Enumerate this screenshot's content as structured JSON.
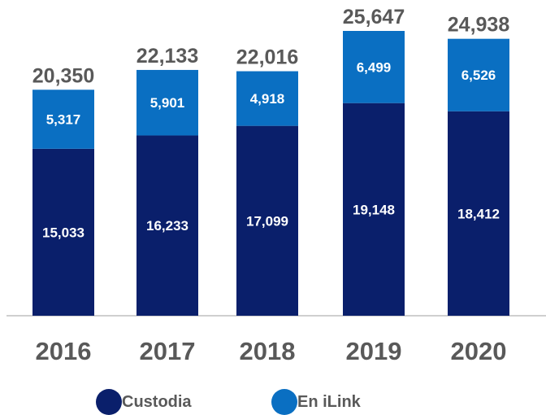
{
  "colors": {
    "custodia": "#0a1f6b",
    "ilink": "#0a6fc2",
    "axis": "#bfbfbf",
    "text": "#595959"
  },
  "chart_data": {
    "type": "bar",
    "stacked": true,
    "categories": [
      "2016",
      "2017",
      "2018",
      "2019",
      "2020"
    ],
    "series": [
      {
        "name": "Custodia",
        "values": [
          15033,
          16233,
          17099,
          19148,
          18412
        ]
      },
      {
        "name": "En iLink",
        "values": [
          5317,
          5901,
          4918,
          6499,
          6526
        ]
      }
    ],
    "segment_labels": {
      "Custodia": [
        "15,033",
        "16,233",
        "17,099",
        "19,148",
        "18,412"
      ],
      "En iLink": [
        "5,317",
        "5,901",
        "4,918",
        "6,499",
        "6,526"
      ]
    },
    "totals": [
      "20,350",
      "22,133",
      "22,016",
      "25,647",
      "24,938"
    ],
    "legend": {
      "position": "bottom"
    },
    "grid": false
  }
}
